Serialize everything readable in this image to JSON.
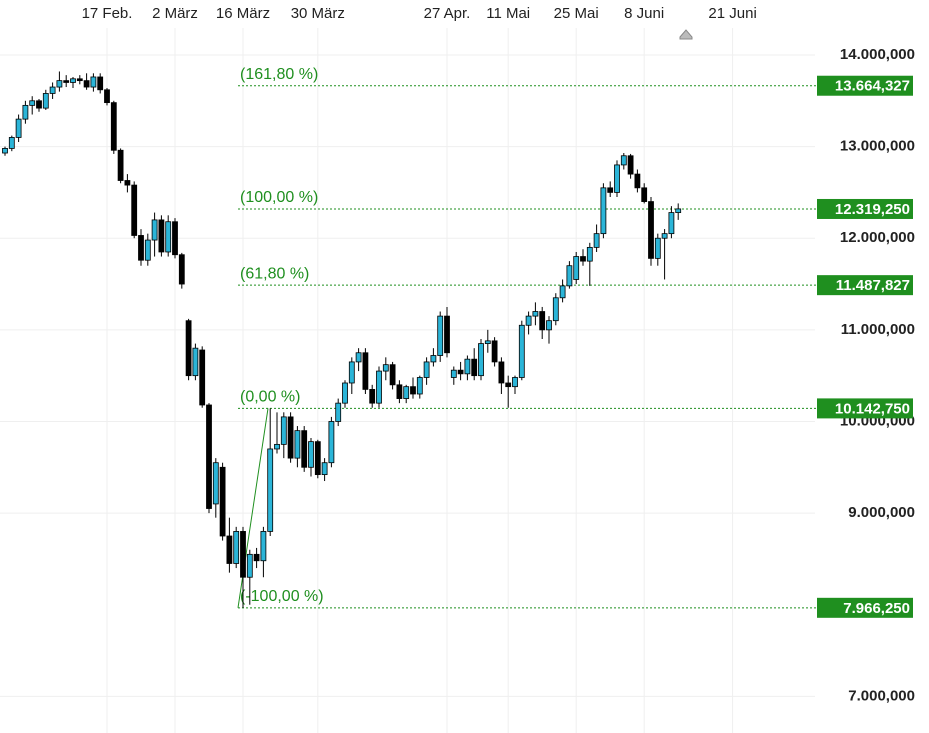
{
  "chart_data": {
    "type": "candlestick",
    "categories": [
      null,
      null,
      null,
      null,
      null,
      null,
      null,
      null,
      null,
      null,
      null,
      null,
      null,
      null,
      null,
      "17 Feb.",
      null,
      null,
      null,
      null,
      null,
      null,
      null,
      null,
      null,
      "2 März",
      null,
      null,
      null,
      null,
      null,
      null,
      null,
      null,
      null,
      "16 März",
      null,
      null,
      null,
      null,
      null,
      null,
      null,
      null,
      null,
      null,
      "30 März",
      null,
      null,
      null,
      null,
      null,
      null,
      null,
      null,
      null,
      null,
      null,
      null,
      null,
      null,
      null,
      null,
      null,
      null,
      "27 Apr.",
      null,
      null,
      null,
      null,
      null,
      null,
      null,
      null,
      "11 Mai",
      null,
      null,
      null,
      null,
      null,
      null,
      null,
      null,
      null,
      "25 Mai",
      null,
      null,
      null,
      null,
      null,
      null,
      null,
      null,
      null,
      "8 Juni",
      null,
      null,
      null,
      null,
      null,
      null,
      null,
      null,
      null,
      null,
      null,
      null,
      "21 Juni"
    ],
    "ohlc": {
      "open": [
        12930000,
        12980000,
        13100000,
        13300000,
        13450000,
        13500000,
        13420000,
        13580000,
        13650000,
        13720000,
        13700000,
        13740000,
        13720000,
        13650000,
        13760000,
        13620000,
        13480000,
        12960000,
        12630000,
        12580000,
        12030000,
        11760000,
        11980000,
        12200000,
        11850000,
        12180000,
        11820000,
        11100000,
        10500000,
        10780000,
        10180000,
        9100000,
        9500000,
        8750000,
        8450000,
        8800000,
        8300000,
        8550000,
        8480000,
        8800000,
        9700000,
        9750000,
        10050000,
        9600000,
        9900000,
        9500000,
        9780000,
        9420000,
        9550000,
        10000000,
        10200000,
        10420000,
        10650000,
        10750000,
        10350000,
        10200000,
        10550000,
        10620000,
        10400000,
        10250000,
        10380000,
        10300000,
        10480000,
        10650000,
        10720000,
        11150000,
        10480000,
        10560000,
        10520000,
        10680000,
        10500000,
        10850000,
        10880000,
        10650000,
        10420000,
        10380000,
        10480000,
        11050000,
        11150000,
        11200000,
        11000000,
        11100000,
        11350000,
        11480000,
        11550000,
        11800000,
        11750000,
        11900000,
        12050000,
        12550000,
        12500000,
        12800000,
        12900000,
        12700000,
        12550000,
        12400000,
        11780000,
        12000000,
        12050000,
        12280000,
        null,
        null,
        null,
        null,
        null,
        null,
        null,
        null
      ],
      "high": [
        13000000,
        13120000,
        13350000,
        13500000,
        13550000,
        13520000,
        13620000,
        13700000,
        13820000,
        13780000,
        13760000,
        13780000,
        13800000,
        13800000,
        13800000,
        13640000,
        13500000,
        12980000,
        12700000,
        12620000,
        12100000,
        12050000,
        12280000,
        12250000,
        12250000,
        12220000,
        11840000,
        11120000,
        10850000,
        10820000,
        10200000,
        9600000,
        9550000,
        8950000,
        8850000,
        8850000,
        8600000,
        8620000,
        8850000,
        10142750,
        10100000,
        10100000,
        10100000,
        9950000,
        9950000,
        9820000,
        9800000,
        9600000,
        10050000,
        10250000,
        10450000,
        10700000,
        10800000,
        10800000,
        10400000,
        10600000,
        10700000,
        10650000,
        10450000,
        10400000,
        10480000,
        10500000,
        10700000,
        10800000,
        11200000,
        11250000,
        10600000,
        10650000,
        10720000,
        10800000,
        10900000,
        11000000,
        10920000,
        10700000,
        10500000,
        10500000,
        11100000,
        11200000,
        11300000,
        11250000,
        11150000,
        11400000,
        11550000,
        11750000,
        11850000,
        11880000,
        11950000,
        12150000,
        12600000,
        12620000,
        12850000,
        12930000,
        12920000,
        12750000,
        12600000,
        12450000,
        12050000,
        12100000,
        12350000,
        12380000,
        null,
        null,
        null,
        null,
        null,
        null,
        null,
        null
      ],
      "low": [
        12900000,
        12950000,
        13050000,
        13250000,
        13350000,
        13380000,
        13400000,
        13520000,
        13600000,
        13650000,
        13640000,
        13680000,
        13620000,
        13600000,
        13580000,
        13450000,
        12920000,
        12600000,
        12500000,
        12000000,
        11700000,
        11700000,
        11800000,
        11800000,
        11800000,
        11780000,
        11450000,
        10450000,
        10450000,
        10150000,
        9000000,
        8950000,
        8700000,
        8350000,
        8400000,
        7966250,
        8000000,
        8400000,
        8300000,
        8750000,
        9650000,
        9600000,
        9550000,
        9500000,
        9450000,
        9400000,
        9380000,
        9350000,
        9500000,
        9950000,
        10150000,
        10300000,
        10550000,
        10300000,
        10150000,
        10150000,
        10450000,
        10350000,
        10200000,
        10200000,
        10250000,
        10250000,
        10400000,
        10600000,
        10650000,
        10700000,
        10400000,
        10450000,
        10450000,
        10450000,
        10450000,
        10750000,
        10600000,
        10300000,
        10150000,
        10300000,
        10450000,
        10950000,
        11050000,
        10900000,
        10850000,
        11050000,
        11300000,
        11450000,
        11500000,
        11700000,
        11480000,
        11850000,
        12000000,
        12450000,
        12450000,
        12750000,
        12650000,
        12500000,
        12380000,
        11700000,
        11700000,
        11550000,
        12000000,
        12200000,
        null,
        null,
        null,
        null,
        null,
        null,
        null,
        null
      ],
      "close": [
        12980000,
        13100000,
        13300000,
        13450000,
        13500000,
        13420000,
        13580000,
        13650000,
        13720000,
        13700000,
        13740000,
        13720000,
        13650000,
        13760000,
        13620000,
        13480000,
        12960000,
        12630000,
        12580000,
        12030000,
        11760000,
        11980000,
        12200000,
        11850000,
        12180000,
        11820000,
        11500000,
        10500000,
        10800000,
        10180000,
        9050000,
        9550000,
        8750000,
        8450000,
        8800000,
        8300000,
        8550000,
        8480000,
        8800000,
        9700000,
        9750000,
        10050000,
        9600000,
        9900000,
        9500000,
        9780000,
        9420000,
        9550000,
        10000000,
        10200000,
        10420000,
        10650000,
        10750000,
        10350000,
        10200000,
        10550000,
        10620000,
        10400000,
        10250000,
        10380000,
        10300000,
        10480000,
        10650000,
        10720000,
        11150000,
        10750000,
        10560000,
        10520000,
        10680000,
        10500000,
        10850000,
        10880000,
        10650000,
        10420000,
        10380000,
        10480000,
        11050000,
        11150000,
        11200000,
        11000000,
        11100000,
        11350000,
        11480000,
        11700000,
        11800000,
        11750000,
        11900000,
        12050000,
        12550000,
        12500000,
        12800000,
        12900000,
        12700000,
        12550000,
        12400000,
        11780000,
        12000000,
        12050000,
        12280000,
        12320000,
        null,
        null,
        null,
        null,
        null,
        null,
        null,
        null
      ]
    },
    "up_color": "#2bb5d8",
    "down_color": "#000000",
    "ylim": [
      6600000,
      14600000
    ],
    "yticks": [
      {
        "value": 14000000,
        "label": "14.000,000"
      },
      {
        "value": 13000000,
        "label": "13.000,000"
      },
      {
        "value": 12000000,
        "label": "12.000,000"
      },
      {
        "value": 11000000,
        "label": "11.000,000"
      },
      {
        "value": 10000000,
        "label": "10.000,000"
      },
      {
        "value": 9000000,
        "label": "9.000,000"
      },
      {
        "value": 7000000,
        "label": "7.000,000"
      }
    ],
    "grid": true,
    "fibonacci": {
      "color": "#1f8f1f",
      "levels": [
        {
          "label": "(161,80 %)",
          "value": 13664327,
          "value_label": "13.664,327"
        },
        {
          "label": "(100,00 %)",
          "value": 12319250,
          "value_label": "12.319,250"
        },
        {
          "label": "(61,80 %)",
          "value": 11487827,
          "value_label": "11.487,827"
        },
        {
          "label": "(0,00 %)",
          "value": 10142750,
          "value_label": "10.142,750"
        },
        {
          "label": "(-100,00 %)",
          "value": 7966250,
          "value_label": "7.966,250"
        }
      ]
    }
  }
}
